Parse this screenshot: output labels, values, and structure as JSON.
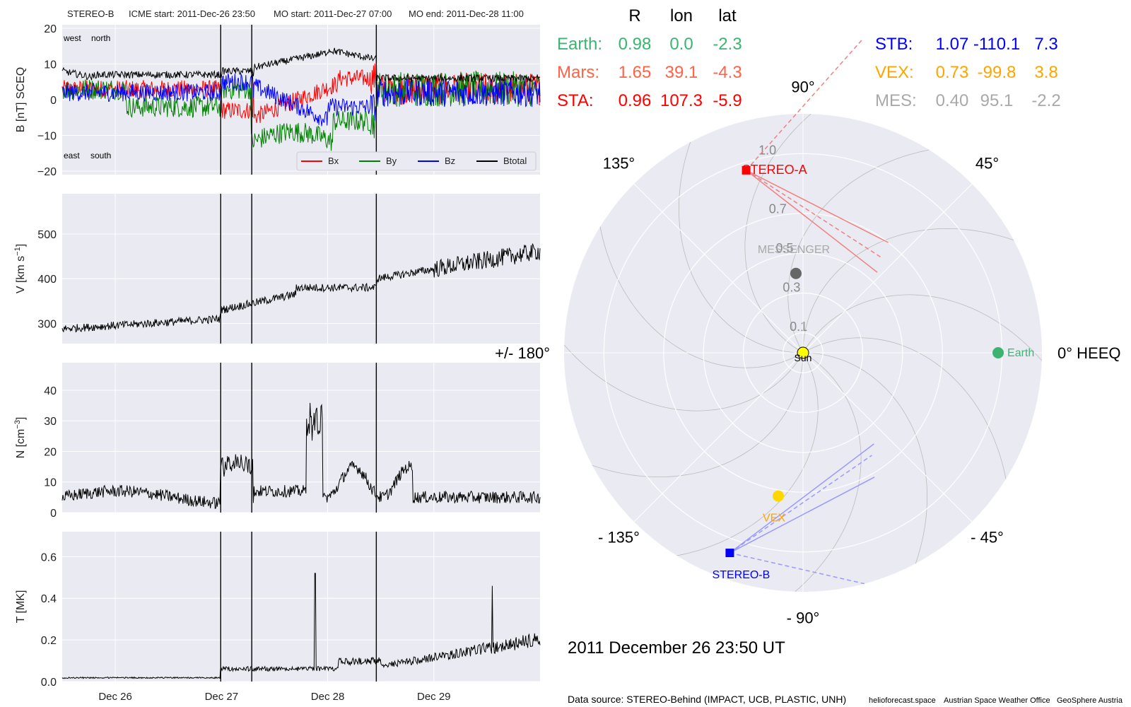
{
  "header": {
    "spacecraft": "STEREO-B",
    "icme_start": "ICME start: 2011-Dec-26 23:50",
    "mo_start": "MO start: 2011-Dec-27 07:00",
    "mo_end": "MO end: 2011-Dec-28 11:00"
  },
  "colors": {
    "panel_bg": "#eaeaf2",
    "bx": "#ff0000",
    "by": "#008000",
    "bz": "#0000ff",
    "btotal": "#000000",
    "earth": "#3cb371",
    "mars": "#ff6347",
    "sta": "#ff0000",
    "stb": "#0000ff",
    "vex": "#ffa500",
    "mes": "#a9a9a9",
    "messenger_dot": "#666666",
    "sun": "#ffff00"
  },
  "timeseries": {
    "x_tick_labels": [
      "Dec 26",
      "Dec 27",
      "Dec 28",
      "Dec 29"
    ],
    "x_ticks_day": [
      0.5,
      1.5,
      2.5,
      3.5
    ],
    "x_range_day": [
      0,
      4.5
    ],
    "markers_day": [
      1.493,
      1.785,
      2.958
    ],
    "b_panel": {
      "ylabel": "B [nT] SCEQ",
      "ylim": [
        -21,
        21
      ],
      "yticks": [
        "20",
        "10",
        "0",
        "−10",
        "−20"
      ],
      "ytick_values": [
        20,
        10,
        0,
        -10,
        -20
      ],
      "annot_west": "west",
      "annot_north": "north",
      "annot_east": "east",
      "annot_south": "south",
      "legend": [
        "Bx",
        "By",
        "Bz",
        "Btotal"
      ]
    },
    "v_panel": {
      "ylabel_main": "V [km s",
      "ylabel_exp": "−1",
      "ylabel_end": "]",
      "ylim": [
        255,
        590
      ],
      "yticks": [
        "500",
        "400",
        "300"
      ],
      "ytick_values": [
        500,
        400,
        300
      ]
    },
    "n_panel": {
      "ylabel_main": "N [cm",
      "ylabel_exp": "−3",
      "ylabel_end": "]",
      "ylim": [
        0,
        49
      ],
      "yticks": [
        "40",
        "30",
        "20",
        "10",
        "0"
      ],
      "ytick_values": [
        40,
        30,
        20,
        10,
        0
      ]
    },
    "t_panel": {
      "ylabel": "T [MK]",
      "ylim": [
        0,
        0.72
      ],
      "yticks": [
        "0.6",
        "0.4",
        "0.2",
        "0.0"
      ],
      "ytick_values": [
        0.6,
        0.4,
        0.2,
        0.0
      ]
    }
  },
  "table": {
    "col_r": "R",
    "col_lon": "lon",
    "col_lat": "lat",
    "rows_left": [
      {
        "name": "Earth:",
        "r": "0.98",
        "lon": "0.0",
        "lat": "-2.3",
        "color": "#3cb371"
      },
      {
        "name": "Mars:",
        "r": "1.65",
        "lon": "39.1",
        "lat": "-4.3",
        "color": "#ff6347"
      },
      {
        "name": "STA:",
        "r": "0.96",
        "lon": "107.3",
        "lat": "-5.9",
        "color": "#ff0000"
      }
    ],
    "rows_right": [
      {
        "name": "STB:",
        "r": "1.07",
        "lon": "-110.1",
        "lat": "7.3",
        "color": "#0000ff"
      },
      {
        "name": "VEX:",
        "r": "0.73",
        "lon": "-99.8",
        "lat": "3.8",
        "color": "#ffa500"
      },
      {
        "name": "MES:",
        "r": "0.40",
        "lon": "95.1",
        "lat": "-2.2",
        "color": "#a9a9a9"
      }
    ]
  },
  "polar": {
    "rmax_au": 1.2,
    "ring_values_au": [
      0.1,
      0.3,
      0.5,
      0.7,
      1.0
    ],
    "ring_labels": [
      "0.1",
      "0.3",
      "0.5",
      "0.7",
      "1.0"
    ],
    "angle_labels": {
      "a0": "0° HEEQ",
      "a45": "45°",
      "a90": "90°",
      "a135": "135°",
      "a180": "+/- 180°",
      "am135": "- 135°",
      "am90": "- 90°",
      "am45": "- 45°"
    },
    "bodies": {
      "sun": {
        "label": "Sun",
        "r": 0.0,
        "lon": 0.0
      },
      "earth": {
        "label": "Earth",
        "r": 0.98,
        "lon": 0.0
      },
      "sta": {
        "label": "STEREO-A",
        "r": 0.96,
        "lon": 107.3
      },
      "stb": {
        "label": "STEREO-B",
        "r": 1.07,
        "lon": -110.1
      },
      "vex": {
        "label": "VEX",
        "r": 0.73,
        "lon": -99.8
      },
      "mes": {
        "label": "MESSENGER",
        "r": 0.4,
        "lon": 95.1
      }
    }
  },
  "footer": {
    "date": "2011 December 26  23:50 UT",
    "source": "Data source: STEREO-Behind (IMPACT, UCB, PLASTIC, UNH)",
    "credit1": "helioforecast.space",
    "credit2": "Austrian Space Weather Office",
    "credit3": "GeoSphere Austria"
  }
}
